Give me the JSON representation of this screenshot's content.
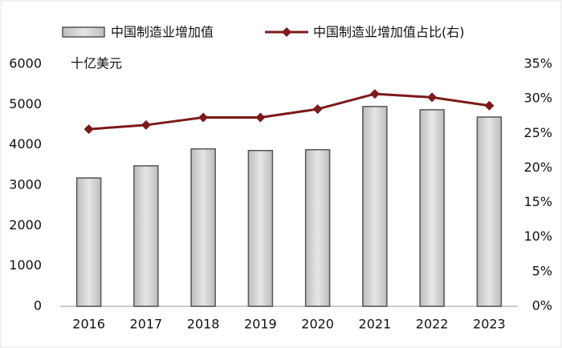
{
  "chart_data": {
    "type": "bar",
    "y_label": "十亿美元",
    "categories": [
      "2016",
      "2017",
      "2018",
      "2019",
      "2020",
      "2021",
      "2022",
      "2023"
    ],
    "series": [
      {
        "name": "中国制造业增加值",
        "type": "bar",
        "color": "#d4d4d4",
        "values": [
          3180,
          3480,
          3900,
          3860,
          3880,
          4950,
          4870,
          4690
        ]
      },
      {
        "name": "中国制造业增加值占比(右)",
        "type": "line",
        "axis": "y2",
        "color": "#7b1a1a",
        "values": [
          25.6,
          26.2,
          27.3,
          27.3,
          28.5,
          30.7,
          30.2,
          29.0
        ]
      }
    ],
    "ylim": [
      0,
      6000
    ],
    "yticks": [
      0,
      1000,
      2000,
      3000,
      4000,
      5000,
      6000
    ],
    "y2lim": [
      0,
      35
    ],
    "y2ticks": [
      {
        "value": 0,
        "label": "0%"
      },
      {
        "value": 5,
        "label": "5%"
      },
      {
        "value": 10,
        "label": "10%"
      },
      {
        "value": 15,
        "label": "15%"
      },
      {
        "value": 20,
        "label": "20%"
      },
      {
        "value": 25,
        "label": "25%"
      },
      {
        "value": 30,
        "label": "30%"
      },
      {
        "value": 35,
        "label": "35%"
      }
    ],
    "grid": false
  }
}
